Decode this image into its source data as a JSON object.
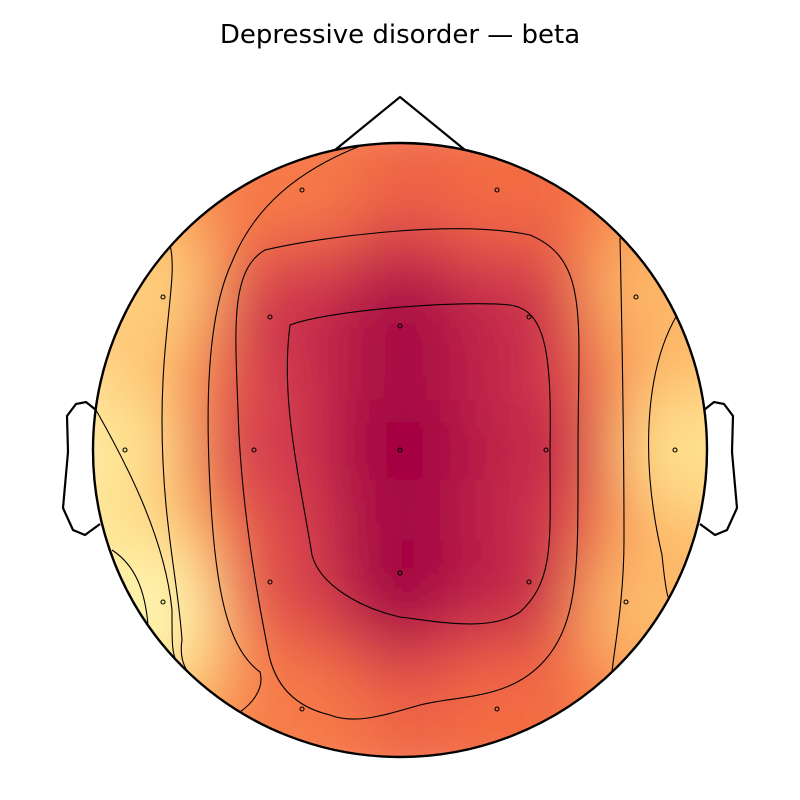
{
  "chart_data": {
    "type": "heatmap",
    "subtype": "eeg-topomap",
    "title": "Depressive disorder — beta",
    "colormap": "Spectral (reversed): low = pale yellow, high = deep crimson",
    "colors": {
      "low": "#fefdc1",
      "mid_low": "#fdbf6f",
      "mid": "#f26c4f",
      "mid_high": "#d6404e",
      "high": "#9e0142",
      "outline": "#000000"
    },
    "colorbar": false,
    "sensors": [
      "Fp1",
      "Fp2",
      "F7",
      "F3",
      "Fz",
      "F4",
      "F8",
      "T3",
      "C3",
      "Cz",
      "C4",
      "T4",
      "T5",
      "P3",
      "Pz",
      "P4",
      "T6",
      "O1",
      "O2"
    ],
    "relative_values": {
      "Fp1": 0.58,
      "Fp2": 0.62,
      "F7": 0.3,
      "F3": 0.82,
      "Fz": 0.97,
      "F4": 0.84,
      "F8": 0.4,
      "T3": 0.2,
      "C3": 0.78,
      "Cz": 1.0,
      "C4": 0.85,
      "T4": 0.22,
      "T5": 0.05,
      "P3": 0.74,
      "Pz": 1.0,
      "P4": 0.86,
      "T6": 0.38,
      "O1": 0.58,
      "O2": 0.62
    },
    "contour_levels": 6
  }
}
